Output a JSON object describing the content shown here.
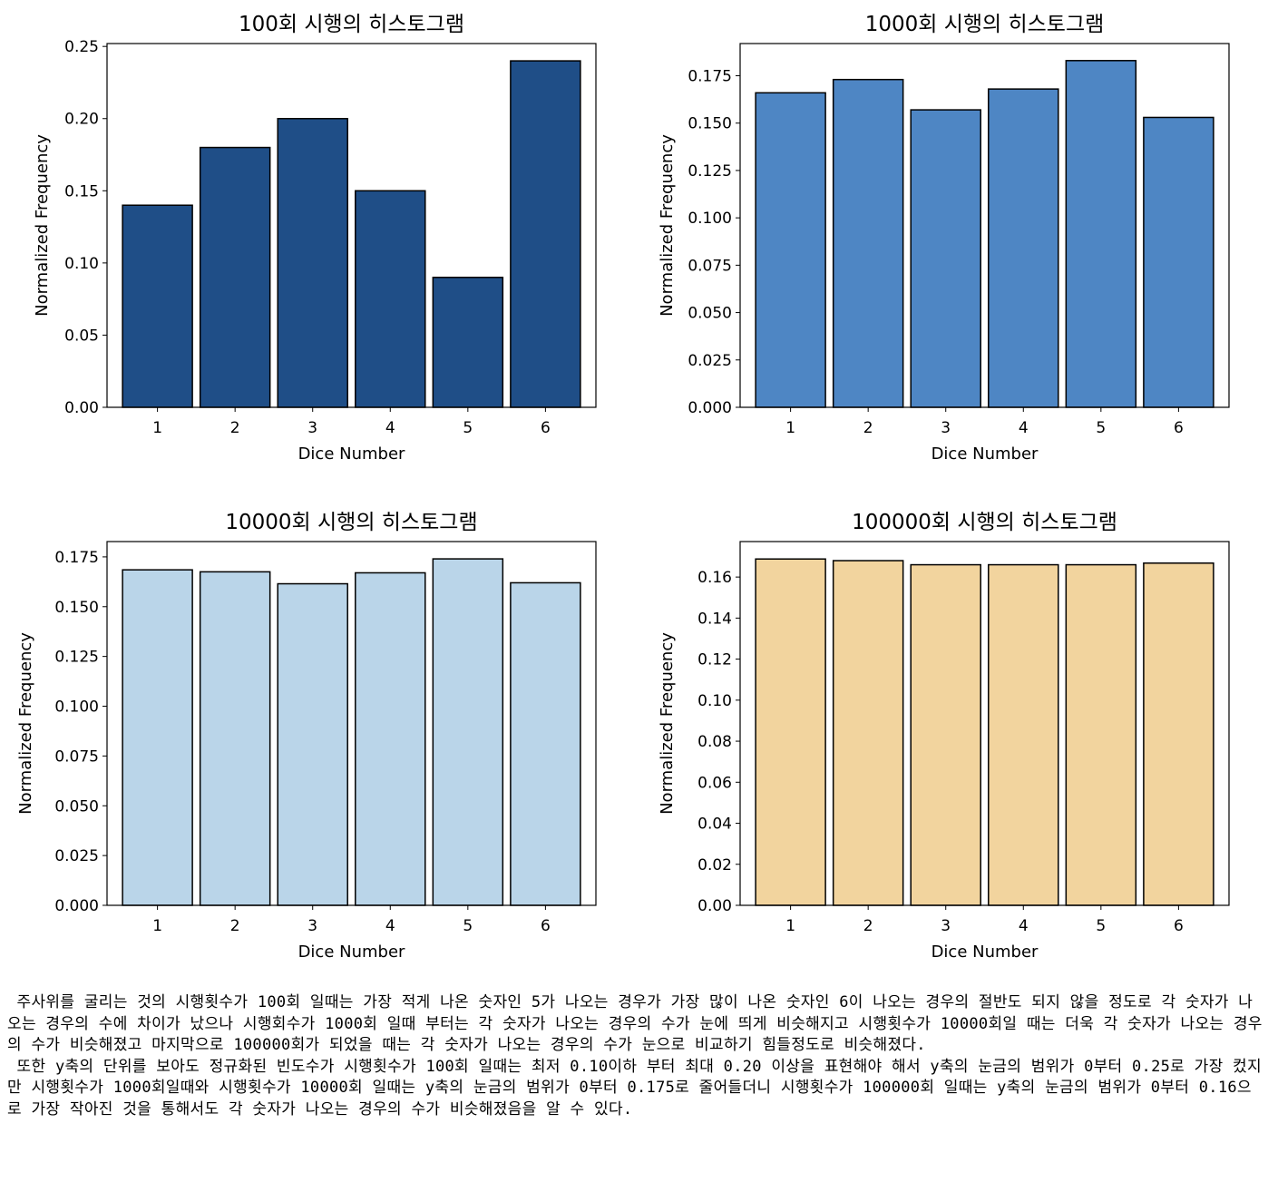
{
  "chart_data": [
    {
      "type": "bar",
      "title": "100회 시행의 히스토그램",
      "xlabel": "Dice Number",
      "ylabel": "Normalized Frequency",
      "categories": [
        "1",
        "2",
        "3",
        "4",
        "5",
        "6"
      ],
      "values": [
        0.14,
        0.18,
        0.2,
        0.15,
        0.09,
        0.24
      ],
      "ylim": [
        0,
        0.252
      ],
      "yticks": [
        "0.00",
        "0.05",
        "0.10",
        "0.15",
        "0.20",
        "0.25"
      ],
      "color": "#1f4e87",
      "grid": false,
      "legend": "none"
    },
    {
      "type": "bar",
      "title": "1000회 시행의 히스토그램",
      "xlabel": "Dice Number",
      "ylabel": "Normalized Frequency",
      "categories": [
        "1",
        "2",
        "3",
        "4",
        "5",
        "6"
      ],
      "values": [
        0.166,
        0.173,
        0.157,
        0.168,
        0.183,
        0.153
      ],
      "ylim": [
        0,
        0.192
      ],
      "yticks": [
        "0.000",
        "0.025",
        "0.050",
        "0.075",
        "0.100",
        "0.125",
        "0.150",
        "0.175"
      ],
      "color": "#4e86c4",
      "grid": false,
      "legend": "none"
    },
    {
      "type": "bar",
      "title": "10000회 시행의 히스토그램",
      "xlabel": "Dice Number",
      "ylabel": "Normalized Frequency",
      "categories": [
        "1",
        "2",
        "3",
        "4",
        "5",
        "6"
      ],
      "values": [
        0.1685,
        0.1675,
        0.1615,
        0.167,
        0.174,
        0.162
      ],
      "ylim": [
        0,
        0.1827
      ],
      "yticks": [
        "0.000",
        "0.025",
        "0.050",
        "0.075",
        "0.100",
        "0.125",
        "0.150",
        "0.175"
      ],
      "color": "#bad5e9",
      "grid": false,
      "legend": "none"
    },
    {
      "type": "bar",
      "title": "100000회 시행의 히스토그램",
      "xlabel": "Dice Number",
      "ylabel": "Normalized Frequency",
      "categories": [
        "1",
        "2",
        "3",
        "4",
        "5",
        "6"
      ],
      "values": [
        0.1688,
        0.168,
        0.166,
        0.166,
        0.166,
        0.1668
      ],
      "ylim": [
        0,
        0.1773
      ],
      "yticks": [
        "0.00",
        "0.02",
        "0.04",
        "0.06",
        "0.08",
        "0.10",
        "0.12",
        "0.14",
        "0.16"
      ],
      "color": "#f2d49e",
      "grid": false,
      "legend": "none"
    }
  ],
  "text": {
    "paragraph1": " 주사위를 굴리는 것의 시행횟수가 100회 일때는 가장 적게 나온 숫자인 5가 나오는 경우가 가장 많이 나온 숫자인 6이 나오는 경우의 절반도 되지 않을 정도로 각 숫자가 나오는 경우의 수에 차이가 났으나 시행회수가 1000회 일때 부터는 각 숫자가 나오는 경우의 수가 눈에 띄게 비슷해지고 시행횟수가 10000회일 때는 더욱 각 숫자가 나오는 경우의 수가 비슷해졌고 마지막으로 100000회가 되었을 때는 각 숫자가 나오는 경우의 수가 눈으로 비교하기 힘들정도로 비슷해졌다.",
    "paragraph2": " 또한 y축의 단위를 보아도 정규화된 빈도수가 시행횟수가 100회 일때는 최저 0.10이하 부터 최대 0.20 이상을 표현해야 해서 y축의 눈금의 범위가 0부터 0.25로 가장 컸지만 시행횟수가 1000회일때와 시행횟수가 10000회 일때는 y축의 눈금의 범위가 0부터 0.175로 줄어들더니 시행횟수가 100000회 일때는 y축의 눈금의 범위가 0부터 0.16으로 가장 작아진 것을 통해서도 각 숫자가 나오는 경우의 수가 비슷해졌음을 알 수 있다."
  }
}
